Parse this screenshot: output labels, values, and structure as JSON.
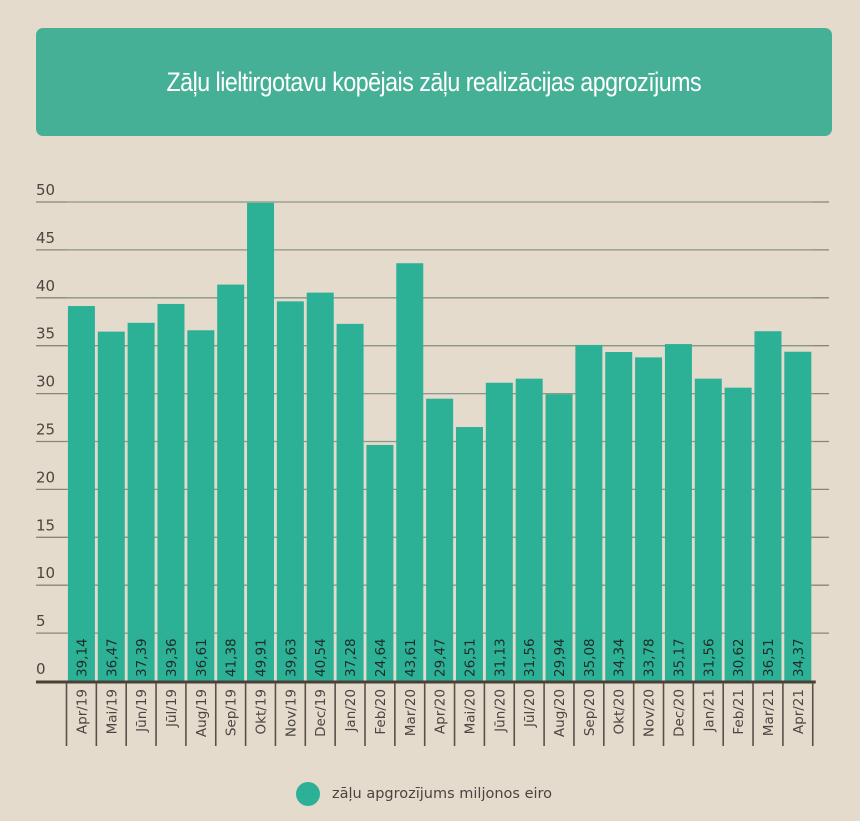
{
  "title": "Zāļu lieltirgotavu kopējais zāļu realizācijas apgrozījums",
  "colors": {
    "background": "#e4dbcc",
    "banner": "#46b097",
    "bar": "#2cb196",
    "grid": "#8e8476",
    "axis": "#4a4038",
    "tick_text": "#4a4540",
    "value_text": "#1f2a26"
  },
  "legend": {
    "label": "zāļu apgrozījums miljonos eiro",
    "icon": "circle-swatch"
  },
  "chart_data": {
    "type": "bar",
    "title": "Zāļu lieltirgotavu kopējais zāļu realizācijas apgrozījums",
    "xlabel": "",
    "ylabel": "",
    "ylim": [
      0,
      50
    ],
    "yticks": [
      0,
      5,
      10,
      15,
      20,
      25,
      30,
      35,
      40,
      45,
      50
    ],
    "grid": true,
    "legend_position": "bottom-center",
    "categories": [
      "Apr/19",
      "Mai/19",
      "Jūn/19",
      "Jūl/19",
      "Aug/19",
      "Sep/19",
      "Okt/19",
      "Nov/19",
      "Dec/19",
      "Jan/20",
      "Feb/20",
      "Mar/20",
      "Apr/20",
      "Mai/20",
      "Jūn/20",
      "Jūl/20",
      "Aug/20",
      "Sep/20",
      "Okt/20",
      "Nov/20",
      "Dec/20",
      "Jan/21",
      "Feb/21",
      "Mar/21",
      "Apr/21"
    ],
    "series": [
      {
        "name": "zāļu apgrozījums miljonos eiro",
        "values": [
          39.14,
          36.47,
          37.39,
          39.36,
          36.61,
          41.38,
          49.91,
          39.63,
          40.54,
          37.28,
          24.64,
          43.61,
          29.47,
          26.51,
          31.13,
          31.56,
          29.94,
          35.08,
          34.34,
          33.78,
          35.17,
          31.56,
          30.62,
          36.51,
          34.37
        ],
        "labels": [
          "39,14",
          "36,47",
          "37,39",
          "39,36",
          "36,61",
          "41,38",
          "49,91",
          "39,63",
          "40,54",
          "37,28",
          "24,64",
          "43,61",
          "29,47",
          "26,51",
          "31,13",
          "31,56",
          "29,94",
          "35,08",
          "34,34",
          "33,78",
          "35,17",
          "31,56",
          "30,62",
          "36,51",
          "34,37"
        ]
      }
    ]
  }
}
